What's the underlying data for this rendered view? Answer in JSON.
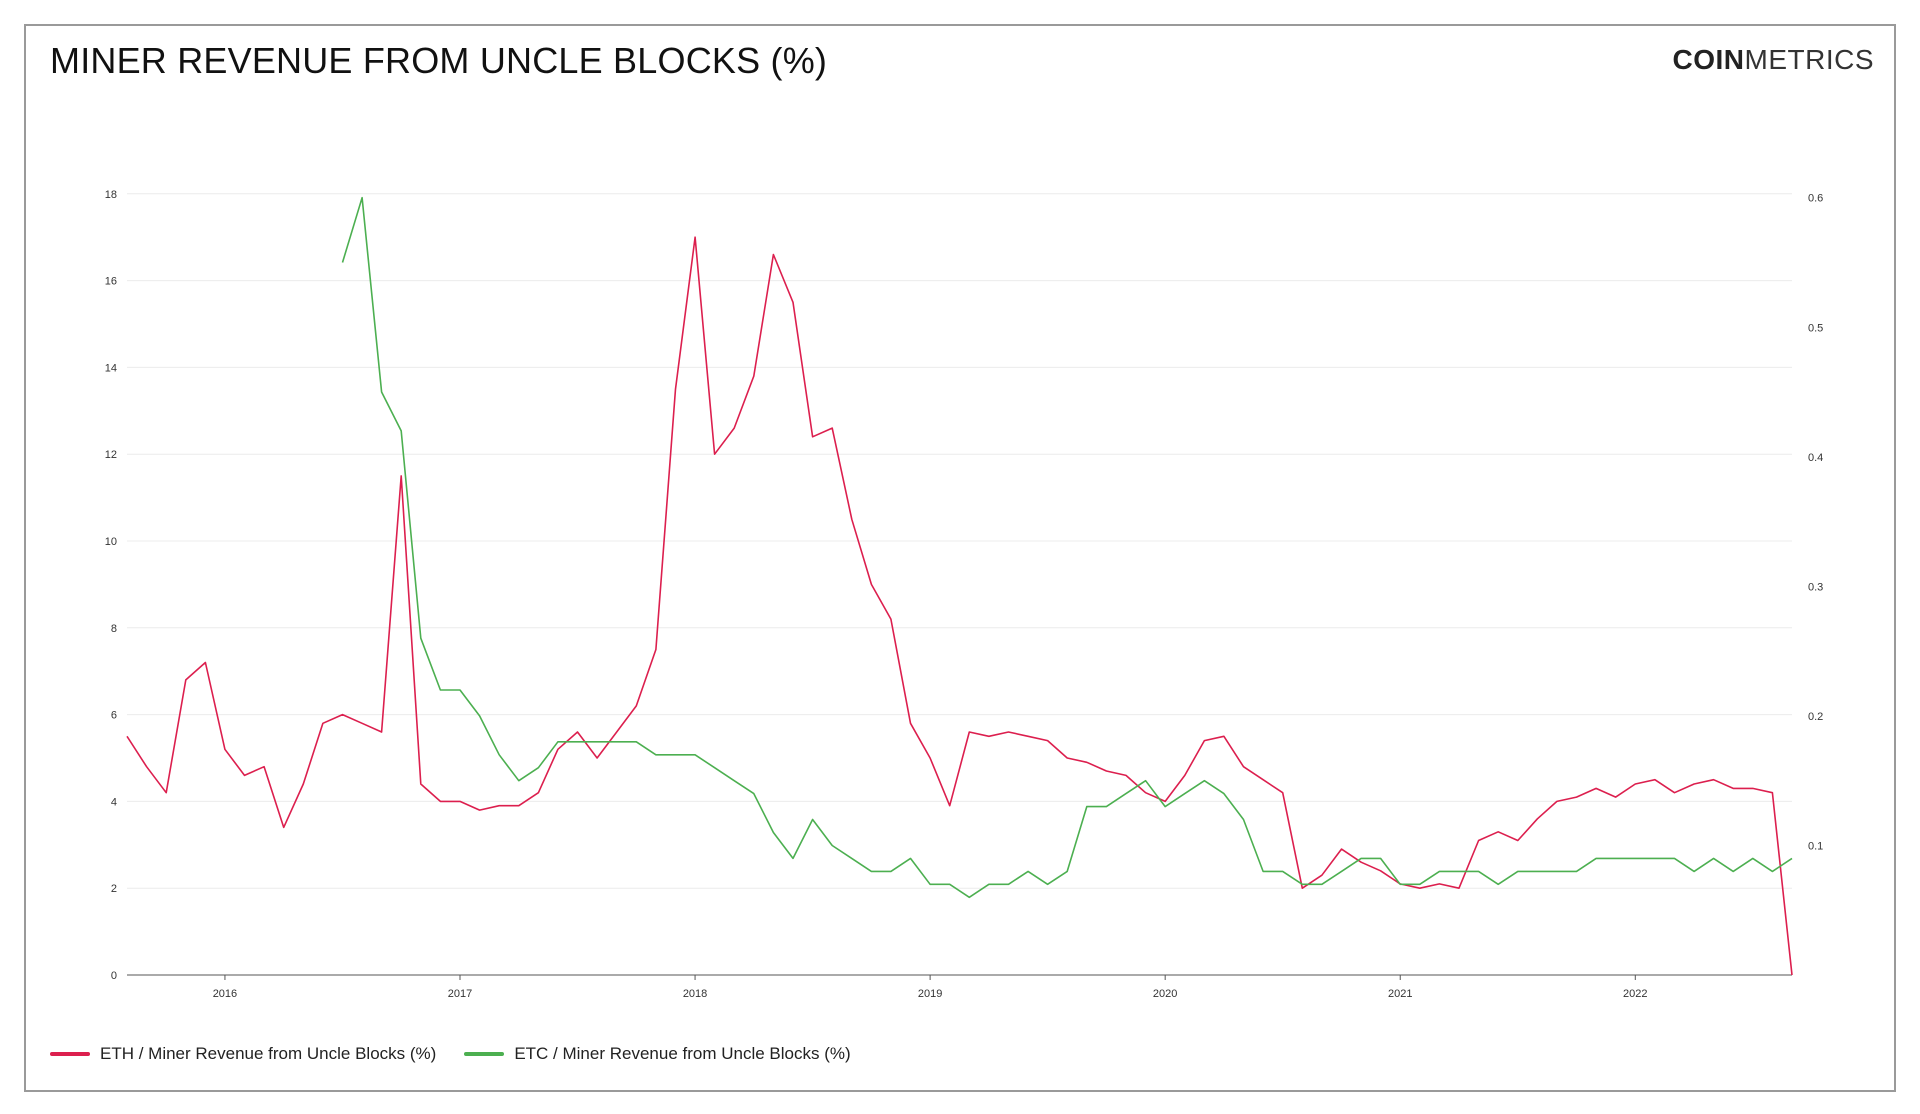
{
  "header": {
    "title": "MINER REVENUE FROM UNCLE BLOCKS (%)",
    "logo_bold": "COIN",
    "logo_light": "METRICS"
  },
  "colors": {
    "eth": "#dc1f4e",
    "etc": "#4caf50",
    "grid": "#ececec"
  },
  "chart_data": {
    "type": "line",
    "title": "MINER REVENUE FROM UNCLE BLOCKS (%)",
    "x_ticks": [
      "2016",
      "2017",
      "2018",
      "2019",
      "2020",
      "2021",
      "2022"
    ],
    "x_range": [
      "2015-08",
      "2022-09"
    ],
    "y_left": {
      "ticks": [
        0,
        2,
        4,
        6,
        8,
        10,
        12,
        14,
        16,
        18
      ],
      "range": [
        0,
        19.7
      ]
    },
    "y_right": {
      "ticks": [
        0.1,
        0.2,
        0.3,
        0.4,
        0.5,
        0.6
      ],
      "range": [
        0.0,
        0.66
      ]
    },
    "grid": true,
    "legend_position": "bottom-left",
    "series": [
      {
        "name": "ETH / Miner Revenue from Uncle Blocks (%)",
        "axis": "left",
        "x": [
          "2015-08",
          "2015-09",
          "2015-10",
          "2015-11",
          "2015-12",
          "2016-01",
          "2016-02",
          "2016-03",
          "2016-04",
          "2016-05",
          "2016-06",
          "2016-07",
          "2016-08",
          "2016-09",
          "2016-10",
          "2016-11",
          "2016-12",
          "2017-01",
          "2017-02",
          "2017-03",
          "2017-04",
          "2017-05",
          "2017-06",
          "2017-07",
          "2017-08",
          "2017-09",
          "2017-10",
          "2017-11",
          "2017-12",
          "2018-01",
          "2018-02",
          "2018-03",
          "2018-04",
          "2018-05",
          "2018-06",
          "2018-07",
          "2018-08",
          "2018-09",
          "2018-10",
          "2018-11",
          "2018-12",
          "2019-01",
          "2019-02",
          "2019-03",
          "2019-04",
          "2019-05",
          "2019-06",
          "2019-07",
          "2019-08",
          "2019-09",
          "2019-10",
          "2019-11",
          "2019-12",
          "2020-01",
          "2020-02",
          "2020-03",
          "2020-04",
          "2020-05",
          "2020-06",
          "2020-07",
          "2020-08",
          "2020-09",
          "2020-10",
          "2020-11",
          "2020-12",
          "2021-01",
          "2021-02",
          "2021-03",
          "2021-04",
          "2021-05",
          "2021-06",
          "2021-07",
          "2021-08",
          "2021-09",
          "2021-10",
          "2021-11",
          "2021-12",
          "2022-01",
          "2022-02",
          "2022-03",
          "2022-04",
          "2022-05",
          "2022-06",
          "2022-07",
          "2022-08",
          "2022-09"
        ],
        "values": [
          5.5,
          4.8,
          4.2,
          6.8,
          7.2,
          5.2,
          4.6,
          4.8,
          3.4,
          4.4,
          5.8,
          6.0,
          5.8,
          5.6,
          11.5,
          4.4,
          4.0,
          4.0,
          3.8,
          3.9,
          3.9,
          4.2,
          5.2,
          5.6,
          5.0,
          5.6,
          6.2,
          7.5,
          13.5,
          17.0,
          12.0,
          12.6,
          13.8,
          16.6,
          15.5,
          12.4,
          12.6,
          10.5,
          9.0,
          8.2,
          5.8,
          5.0,
          3.9,
          5.6,
          5.5,
          5.6,
          5.5,
          5.4,
          5.0,
          4.9,
          4.7,
          4.6,
          4.2,
          4.0,
          4.6,
          5.4,
          5.5,
          4.8,
          4.5,
          4.2,
          2.0,
          2.3,
          2.9,
          2.6,
          2.4,
          2.1,
          2.0,
          2.1,
          2.0,
          3.1,
          3.3,
          3.1,
          3.6,
          4.0,
          4.1,
          4.3,
          4.1,
          4.4,
          4.5,
          4.2,
          4.4,
          4.5,
          4.3,
          4.3,
          4.2,
          0.0
        ]
      },
      {
        "name": "ETC / Miner Revenue from Uncle Blocks (%)",
        "axis": "right",
        "x": [
          "2016-07",
          "2016-08",
          "2016-09",
          "2016-10",
          "2016-11",
          "2016-12",
          "2017-01",
          "2017-02",
          "2017-03",
          "2017-04",
          "2017-05",
          "2017-06",
          "2017-07",
          "2017-08",
          "2017-09",
          "2017-10",
          "2017-11",
          "2017-12",
          "2018-01",
          "2018-02",
          "2018-03",
          "2018-04",
          "2018-05",
          "2018-06",
          "2018-07",
          "2018-08",
          "2018-09",
          "2018-10",
          "2018-11",
          "2018-12",
          "2019-01",
          "2019-02",
          "2019-03",
          "2019-04",
          "2019-05",
          "2019-06",
          "2019-07",
          "2019-08",
          "2019-09",
          "2019-10",
          "2019-11",
          "2019-12",
          "2020-01",
          "2020-02",
          "2020-03",
          "2020-04",
          "2020-05",
          "2020-06",
          "2020-07",
          "2020-08",
          "2020-09",
          "2020-10",
          "2020-11",
          "2020-12",
          "2021-01",
          "2021-02",
          "2021-03",
          "2021-04",
          "2021-05",
          "2021-06",
          "2021-07",
          "2021-08",
          "2021-09",
          "2021-10",
          "2021-11",
          "2021-12",
          "2022-01",
          "2022-02",
          "2022-03",
          "2022-04",
          "2022-05",
          "2022-06",
          "2022-07",
          "2022-08",
          "2022-09"
        ],
        "values": [
          0.55,
          0.6,
          0.45,
          0.42,
          0.26,
          0.22,
          0.22,
          0.2,
          0.17,
          0.15,
          0.16,
          0.18,
          0.18,
          0.18,
          0.18,
          0.18,
          0.17,
          0.17,
          0.17,
          0.16,
          0.15,
          0.14,
          0.11,
          0.09,
          0.12,
          0.1,
          0.09,
          0.08,
          0.08,
          0.09,
          0.07,
          0.07,
          0.06,
          0.07,
          0.07,
          0.08,
          0.07,
          0.08,
          0.13,
          0.13,
          0.14,
          0.15,
          0.13,
          0.14,
          0.15,
          0.14,
          0.12,
          0.08,
          0.08,
          0.07,
          0.07,
          0.08,
          0.09,
          0.09,
          0.07,
          0.07,
          0.08,
          0.08,
          0.08,
          0.07,
          0.08,
          0.08,
          0.08,
          0.08,
          0.09,
          0.09,
          0.09,
          0.09,
          0.09,
          0.08,
          0.09,
          0.08,
          0.09,
          0.08,
          0.09
        ]
      }
    ]
  },
  "legend": [
    {
      "label": "ETH / Miner Revenue from Uncle Blocks (%)",
      "color": "#dc1f4e"
    },
    {
      "label": "ETC / Miner Revenue from Uncle Blocks (%)",
      "color": "#4caf50"
    }
  ]
}
